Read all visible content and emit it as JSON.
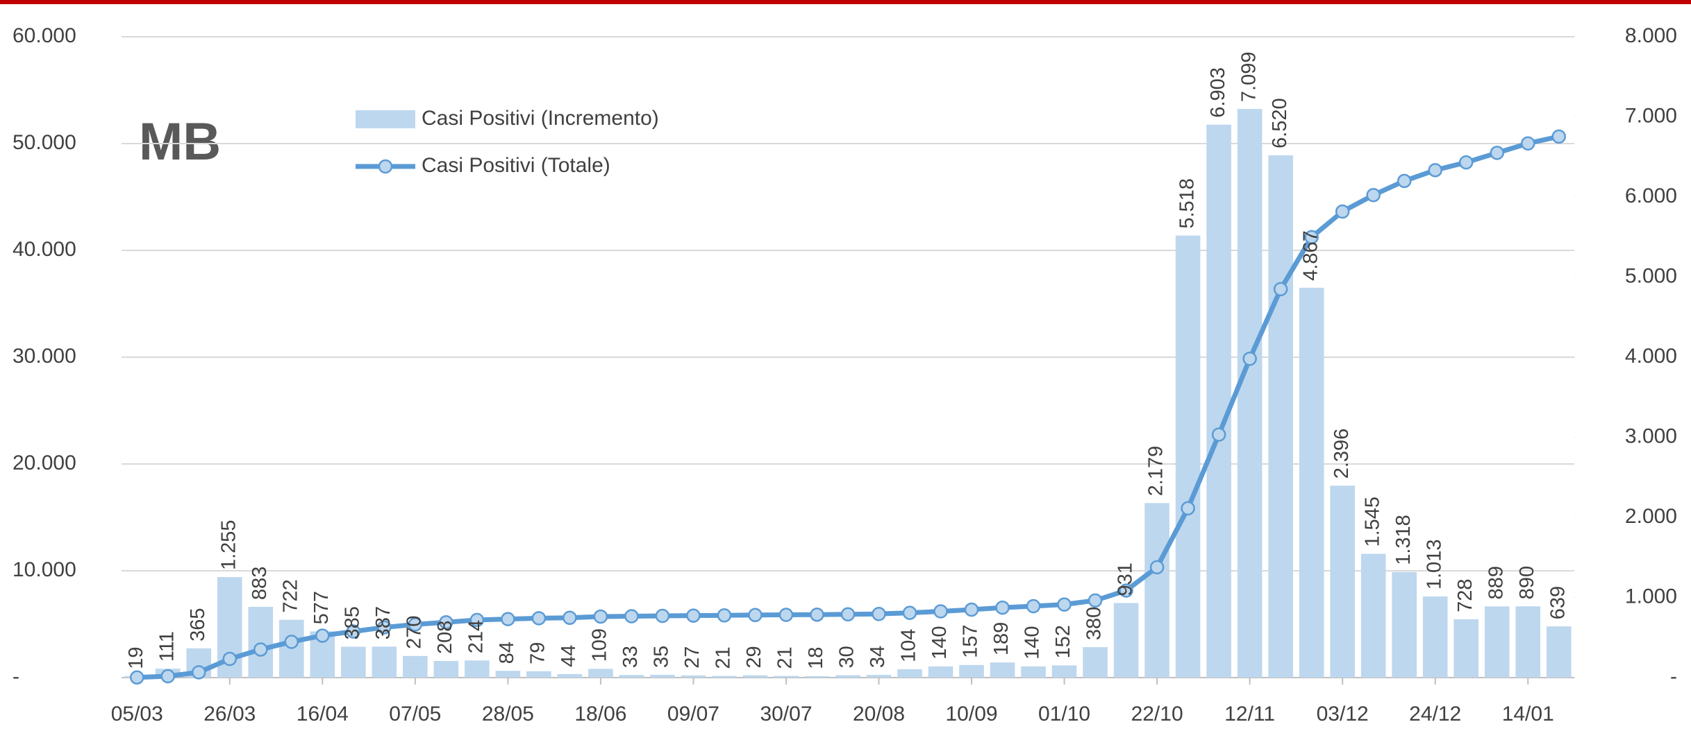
{
  "chart_data": {
    "type": "bar",
    "panel_label": "MB",
    "categories": [
      "05/03",
      null,
      null,
      "26/03",
      null,
      null,
      "16/04",
      null,
      null,
      "07/05",
      null,
      null,
      "28/05",
      null,
      null,
      "18/06",
      null,
      null,
      "09/07",
      null,
      null,
      "30/07",
      null,
      null,
      "20/08",
      null,
      null,
      "10/09",
      null,
      null,
      "01/10",
      null,
      null,
      "22/10",
      null,
      null,
      "12/11",
      null,
      null,
      "03/12",
      null,
      null,
      "24/12",
      null,
      null,
      "14/01",
      null
    ],
    "series": [
      {
        "name": "Casi Positivi (Incremento)",
        "type": "bar",
        "axis": "y2",
        "color": "#bdd7ee",
        "values": [
          19,
          111,
          365,
          1255,
          883,
          722,
          577,
          385,
          387,
          270,
          208,
          214,
          84,
          79,
          44,
          109,
          33,
          35,
          27,
          21,
          29,
          21,
          18,
          30,
          34,
          104,
          140,
          157,
          189,
          140,
          152,
          380,
          931,
          2179,
          5518,
          6903,
          7099,
          6520,
          4867,
          2396,
          1545,
          1318,
          1013,
          728,
          889,
          890,
          639
        ],
        "value_labels": [
          "19",
          "111",
          "365",
          "1.255",
          "883",
          "722",
          "577",
          "385",
          "387",
          "270",
          "208",
          "214",
          "84",
          "79",
          "44",
          "109",
          "33",
          "35",
          "27",
          "21",
          "29",
          "21",
          "18",
          "30",
          "34",
          "104",
          "140",
          "157",
          "189",
          "140",
          "152",
          "380",
          "931",
          "2.179",
          "5.518",
          "6.903",
          "7.099",
          "6.520",
          "4.867",
          "2.396",
          "1.545",
          "1.318",
          "1.013",
          "728",
          "889",
          "890",
          "639"
        ]
      },
      {
        "name": "Casi Positivi (Totale)",
        "type": "line",
        "axis": "y",
        "color": "#5b9bd5",
        "marker_fill": "#bdd7ee",
        "values": [
          19,
          130,
          495,
          1750,
          2633,
          3355,
          3932,
          4317,
          4704,
          4974,
          5182,
          5396,
          5480,
          5559,
          5603,
          5712,
          5745,
          5780,
          5807,
          5828,
          5857,
          5878,
          5896,
          5926,
          5960,
          6064,
          6204,
          6361,
          6550,
          6690,
          6842,
          7222,
          8153,
          10332,
          15850,
          22753,
          29852,
          36372,
          41239,
          43635,
          45180,
          46498,
          47511,
          48239,
          49128,
          50018,
          50657
        ]
      }
    ],
    "ylim": [
      0,
      60000
    ],
    "yticks": [
      {
        "value": 0,
        "label": "-"
      },
      {
        "value": 10000,
        "label": "10.000"
      },
      {
        "value": 20000,
        "label": "20.000"
      },
      {
        "value": 30000,
        "label": "30.000"
      },
      {
        "value": 40000,
        "label": "40.000"
      },
      {
        "value": 50000,
        "label": "50.000"
      },
      {
        "value": 60000,
        "label": "60.000"
      }
    ],
    "y2lim": [
      0,
      8000
    ],
    "y2ticks": [
      {
        "value": 0,
        "label": "-"
      },
      {
        "value": 1000,
        "label": "1.000"
      },
      {
        "value": 2000,
        "label": "2.000"
      },
      {
        "value": 3000,
        "label": "3.000"
      },
      {
        "value": 4000,
        "label": "4.000"
      },
      {
        "value": 5000,
        "label": "5.000"
      },
      {
        "value": 6000,
        "label": "6.000"
      },
      {
        "value": 7000,
        "label": "7.000"
      },
      {
        "value": 8000,
        "label": "8.000"
      }
    ],
    "grid": true
  }
}
